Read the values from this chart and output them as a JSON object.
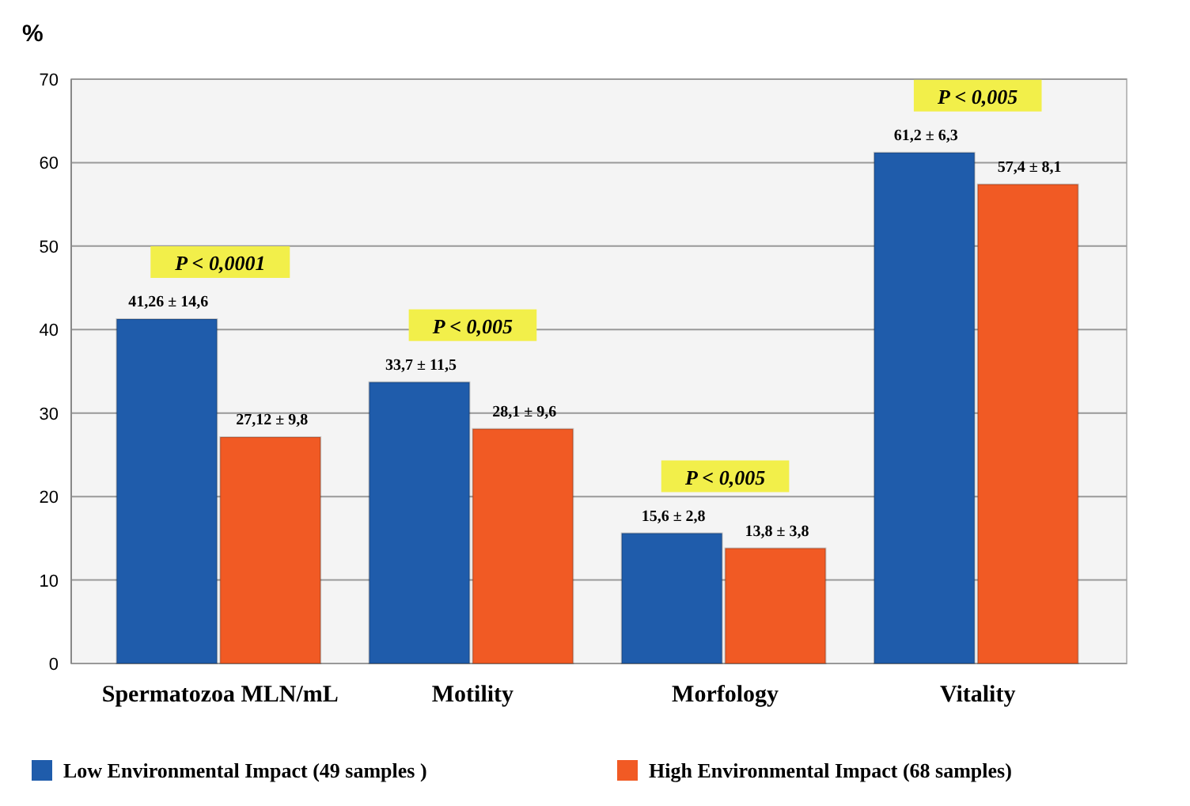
{
  "chart_data": {
    "type": "bar",
    "ylabel": "%",
    "categories": [
      "Spermatozoa MLN/mL",
      "Motility",
      "Morfology",
      "Vitality"
    ],
    "series": [
      {
        "name": "Low Environmental Impact  (49 samples  )",
        "color": "#1f5cab",
        "values": [
          41.26,
          33.7,
          15.6,
          61.2
        ],
        "value_labels": [
          "41,26 ± 14,6",
          "33,7 ± 11,5",
          "15,6 ± 2,8",
          "61,2 ± 6,3"
        ]
      },
      {
        "name": "High Environmental Impact (68 samples)",
        "color": "#f15a24",
        "values": [
          27.12,
          28.1,
          13.8,
          57.4
        ],
        "value_labels": [
          "27,12 ± 9,8",
          "28,1 ± 9,6",
          "13,8 ± 3,8",
          "57,4 ± 8,1"
        ]
      }
    ],
    "ylim": [
      0,
      70
    ],
    "yticks": [
      0,
      10,
      20,
      30,
      40,
      50,
      60,
      70
    ],
    "grid": "y",
    "legend": "bottom",
    "annotations": [
      "P < 0,0001",
      "P < 0,005",
      "P < 0,005",
      "P < 0,005"
    ]
  }
}
